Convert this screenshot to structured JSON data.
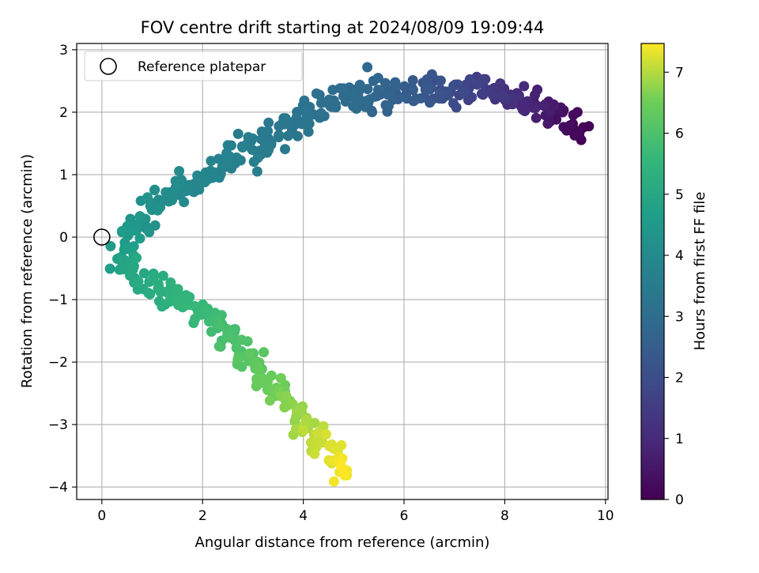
{
  "chart_data": {
    "type": "scatter",
    "title": "FOV centre drift starting at 2024/08/09 19:09:44",
    "xlabel": "Angular distance from reference (arcmin)",
    "ylabel": "Rotation from reference (arcmin)",
    "xlim": [
      -0.5,
      10.05
    ],
    "ylim": [
      -4.2,
      3.1
    ],
    "xticks": [
      0,
      2,
      4,
      6,
      8,
      10
    ],
    "yticks": [
      -4,
      -3,
      -2,
      -1,
      0,
      1,
      2,
      3
    ],
    "grid": true,
    "colormap": "viridis",
    "colorbar": {
      "label": "Hours from first FF file",
      "range": [
        0,
        7.47
      ],
      "ticks": [
        0,
        1,
        2,
        3,
        4,
        5,
        6,
        7
      ]
    },
    "legend": {
      "placement": "top-left",
      "entries": [
        {
          "label": "Reference platepar",
          "marker": "hollow-circle",
          "color": "#000000"
        }
      ]
    },
    "reference_point": {
      "x": 0,
      "y": 0
    },
    "trend_path": [
      {
        "x": 9.55,
        "y": 1.7,
        "t": 0.0
      },
      {
        "x": 9.2,
        "y": 1.9,
        "t": 0.3
      },
      {
        "x": 8.6,
        "y": 2.15,
        "t": 0.8
      },
      {
        "x": 8.0,
        "y": 2.3,
        "t": 1.2
      },
      {
        "x": 7.3,
        "y": 2.35,
        "t": 1.7
      },
      {
        "x": 6.6,
        "y": 2.35,
        "t": 2.2
      },
      {
        "x": 5.8,
        "y": 2.3,
        "t": 2.6
      },
      {
        "x": 5.1,
        "y": 2.25,
        "t": 2.9
      },
      {
        "x": 4.4,
        "y": 2.05,
        "t": 3.1
      },
      {
        "x": 3.8,
        "y": 1.8,
        "t": 3.3
      },
      {
        "x": 3.1,
        "y": 1.5,
        "t": 3.5
      },
      {
        "x": 2.5,
        "y": 1.2,
        "t": 3.7
      },
      {
        "x": 1.8,
        "y": 0.9,
        "t": 3.9
      },
      {
        "x": 1.2,
        "y": 0.6,
        "t": 4.1
      },
      {
        "x": 0.8,
        "y": 0.3,
        "t": 4.3
      },
      {
        "x": 0.5,
        "y": 0.0,
        "t": 4.55
      },
      {
        "x": 0.4,
        "y": -0.3,
        "t": 4.75
      },
      {
        "x": 0.7,
        "y": -0.6,
        "t": 5.0
      },
      {
        "x": 1.3,
        "y": -0.9,
        "t": 5.3
      },
      {
        "x": 1.9,
        "y": -1.2,
        "t": 5.6
      },
      {
        "x": 2.5,
        "y": -1.55,
        "t": 5.9
      },
      {
        "x": 2.9,
        "y": -2.0,
        "t": 6.2
      },
      {
        "x": 3.4,
        "y": -2.4,
        "t": 6.5
      },
      {
        "x": 3.9,
        "y": -2.8,
        "t": 6.8
      },
      {
        "x": 4.3,
        "y": -3.2,
        "t": 7.1
      },
      {
        "x": 4.8,
        "y": -3.75,
        "t": 7.47
      }
    ],
    "point_count": 560,
    "scatter_spread": 0.12
  }
}
